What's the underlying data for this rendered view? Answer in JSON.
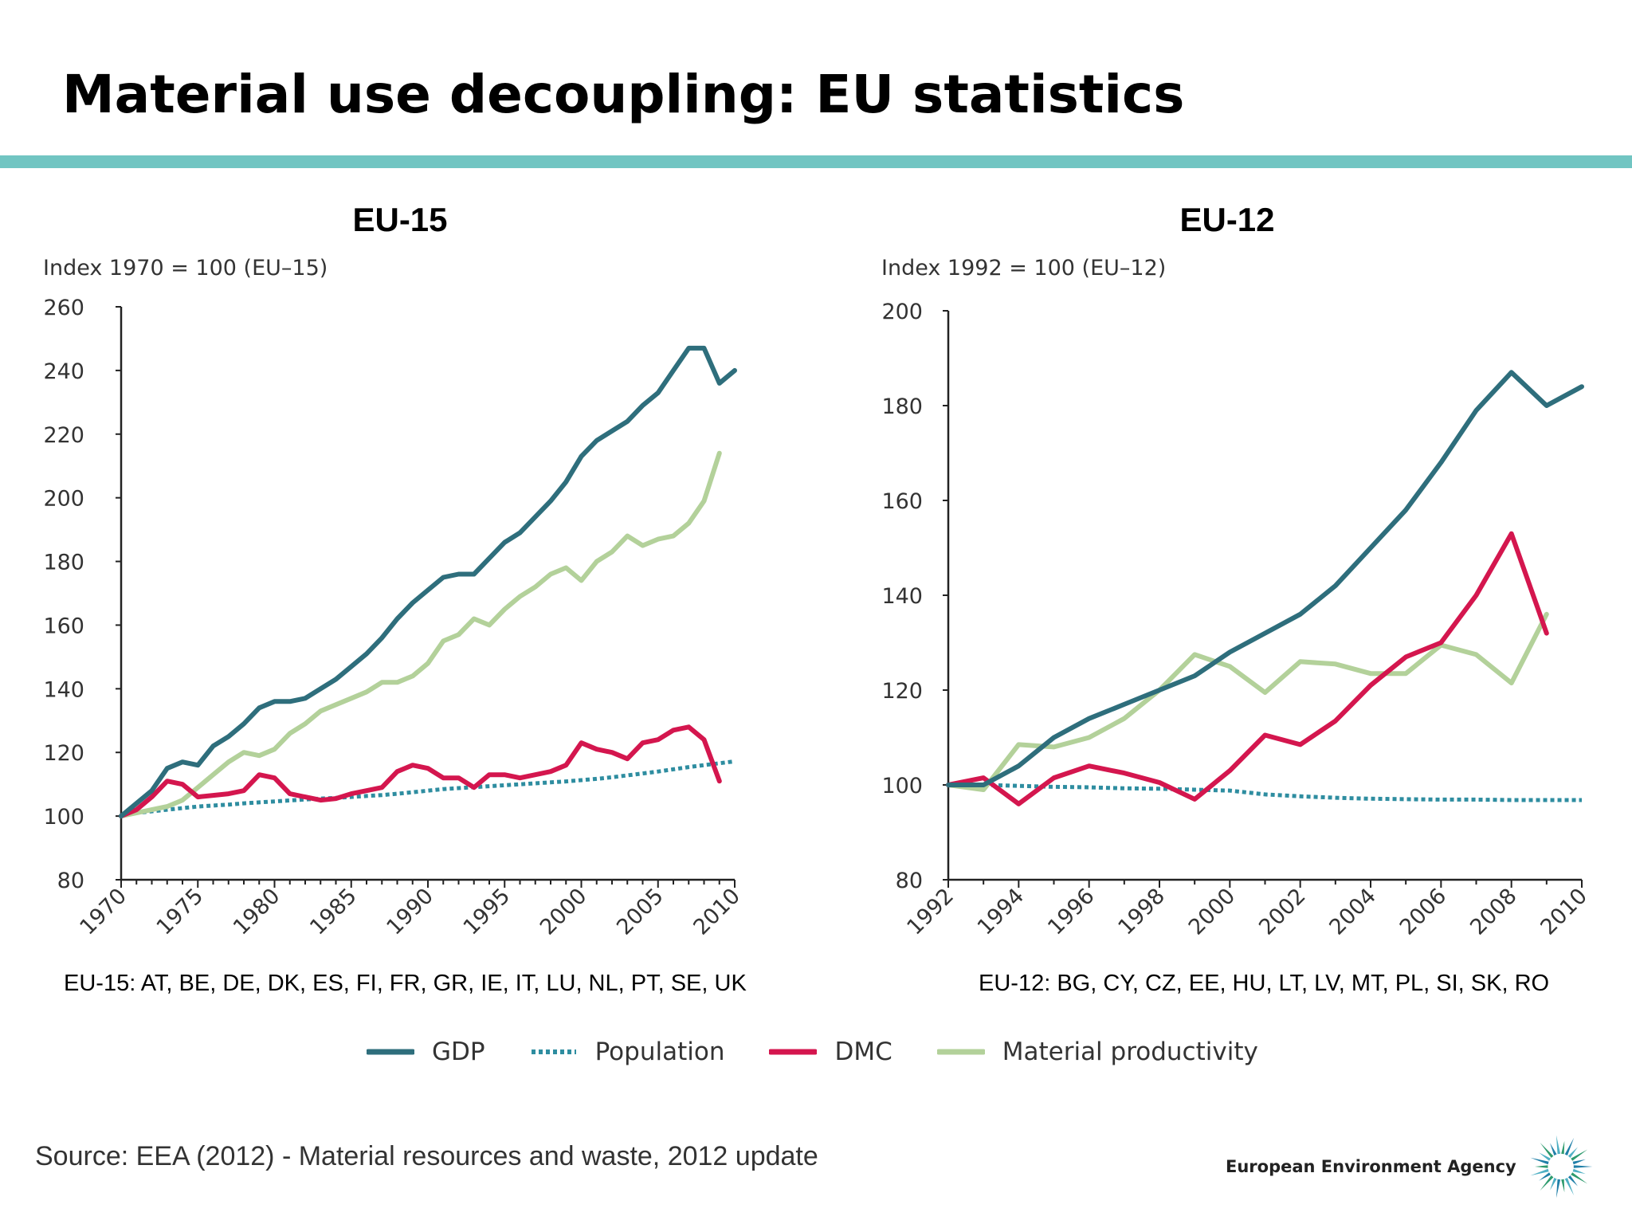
{
  "title": "Material use decoupling: EU statistics",
  "colors": {
    "gdp": "#2e6e7c",
    "population": "#2e8da0",
    "dmc": "#d4164e",
    "material_productivity": "#b3d19a",
    "rule": "#71c5c2"
  },
  "legend": [
    {
      "key": "gdp",
      "label": "GDP",
      "style": "solid"
    },
    {
      "key": "population",
      "label": "Population",
      "style": "dotted"
    },
    {
      "key": "dmc",
      "label": "DMC",
      "style": "solid"
    },
    {
      "key": "material_productivity",
      "label": "Material productivity",
      "style": "solid"
    }
  ],
  "chart_data": [
    {
      "type": "line",
      "title": "EU-15",
      "ylabel": "Index 1970 = 100 (EU–15)",
      "ylim": [
        80,
        260
      ],
      "yticks": [
        80,
        100,
        120,
        140,
        160,
        180,
        200,
        220,
        240,
        260
      ],
      "xlim": [
        1970,
        2010
      ],
      "xticks": [
        1970,
        1975,
        1980,
        1985,
        1990,
        1995,
        2000,
        2005,
        2010
      ],
      "caption": "EU-15: AT, BE, DE, DK, ES, FI, FR, GR, IE, IT, LU, NL, PT, SE, UK",
      "x": [
        1970,
        1971,
        1972,
        1973,
        1974,
        1975,
        1976,
        1977,
        1978,
        1979,
        1980,
        1981,
        1982,
        1983,
        1984,
        1985,
        1986,
        1987,
        1988,
        1989,
        1990,
        1991,
        1992,
        1993,
        1994,
        1995,
        1996,
        1997,
        1998,
        1999,
        2000,
        2001,
        2002,
        2003,
        2004,
        2005,
        2006,
        2007,
        2008,
        2009,
        2010
      ],
      "series": [
        {
          "name": "GDP",
          "key": "gdp",
          "values": [
            100,
            104,
            108,
            115,
            117,
            116,
            122,
            125,
            129,
            134,
            136,
            136,
            137,
            140,
            143,
            147,
            151,
            156,
            162,
            167,
            171,
            175,
            176,
            176,
            181,
            186,
            189,
            194,
            199,
            205,
            213,
            218,
            221,
            224,
            229,
            233,
            240,
            247,
            247,
            236,
            240
          ]
        },
        {
          "name": "Population",
          "key": "population",
          "values": [
            100,
            101,
            101.5,
            102,
            102.5,
            103,
            103.3,
            103.6,
            104,
            104.3,
            104.6,
            104.9,
            105.2,
            105.5,
            105.7,
            106,
            106.3,
            106.6,
            107,
            107.5,
            108,
            108.5,
            108.8,
            109.1,
            109.4,
            109.7,
            110,
            110.3,
            110.6,
            110.9,
            111.3,
            111.7,
            112.2,
            112.8,
            113.4,
            114,
            114.7,
            115.4,
            116,
            116.6,
            117.2
          ]
        },
        {
          "name": "DMC",
          "key": "dmc",
          "values": [
            100,
            102,
            106,
            111,
            110,
            106,
            106.5,
            107,
            108,
            113,
            112,
            107,
            106,
            105,
            105.5,
            107,
            108,
            109,
            114,
            116,
            115,
            112,
            112,
            109,
            113,
            113,
            112,
            113,
            114,
            116,
            123,
            121,
            120,
            118,
            123,
            124,
            127,
            128,
            124,
            111,
            null
          ]
        },
        {
          "name": "Material productivity",
          "key": "material_productivity",
          "values": [
            100,
            101,
            102,
            103,
            105,
            109,
            113,
            117,
            120,
            119,
            121,
            126,
            129,
            133,
            135,
            137,
            139,
            142,
            142,
            144,
            148,
            155,
            157,
            162,
            160,
            165,
            169,
            172,
            176,
            178,
            174,
            180,
            183,
            188,
            185,
            187,
            188,
            192,
            199,
            214,
            null
          ]
        }
      ]
    },
    {
      "type": "line",
      "title": "EU-12",
      "ylabel": "Index 1992 = 100 (EU–12)",
      "ylim": [
        80,
        200
      ],
      "yticks": [
        80,
        100,
        120,
        140,
        160,
        180,
        200
      ],
      "xlim": [
        1992,
        2010
      ],
      "xticks": [
        1992,
        1994,
        1996,
        1998,
        2000,
        2002,
        2004,
        2006,
        2008,
        2010
      ],
      "caption": "EU-12: BG, CY, CZ, EE, HU, LT, LV, MT, PL, SI, SK, RO",
      "x": [
        1992,
        1993,
        1994,
        1995,
        1996,
        1997,
        1998,
        1999,
        2000,
        2001,
        2002,
        2003,
        2004,
        2005,
        2006,
        2007,
        2008,
        2009,
        2010
      ],
      "series": [
        {
          "name": "GDP",
          "key": "gdp",
          "values": [
            100,
            100,
            104,
            110,
            114,
            117,
            120,
            123,
            128,
            132,
            136,
            142,
            150,
            158,
            168,
            179,
            187,
            180,
            184
          ]
        },
        {
          "name": "Population",
          "key": "population",
          "values": [
            100,
            100,
            99.8,
            99.6,
            99.5,
            99.3,
            99.2,
            99,
            98.8,
            98,
            97.6,
            97.3,
            97.1,
            97,
            96.9,
            96.9,
            96.8,
            96.8,
            96.8
          ]
        },
        {
          "name": "DMC",
          "key": "dmc",
          "values": [
            100,
            101.5,
            96,
            101.5,
            104,
            102.5,
            100.5,
            97,
            103,
            110.5,
            108.5,
            113.5,
            121,
            127,
            130,
            140,
            153,
            132,
            null
          ]
        },
        {
          "name": "Material productivity",
          "key": "material_productivity",
          "values": [
            100,
            99,
            108.5,
            108,
            110,
            114,
            120,
            127.5,
            125,
            119.5,
            126,
            125.5,
            123.5,
            123.5,
            129.5,
            127.5,
            121.5,
            136,
            null
          ]
        }
      ]
    }
  ],
  "source": "Source: EEA (2012) - Material resources and waste, 2012 update",
  "logo": {
    "text": "European Environment Agency",
    "icon": "eea-sun-icon"
  }
}
